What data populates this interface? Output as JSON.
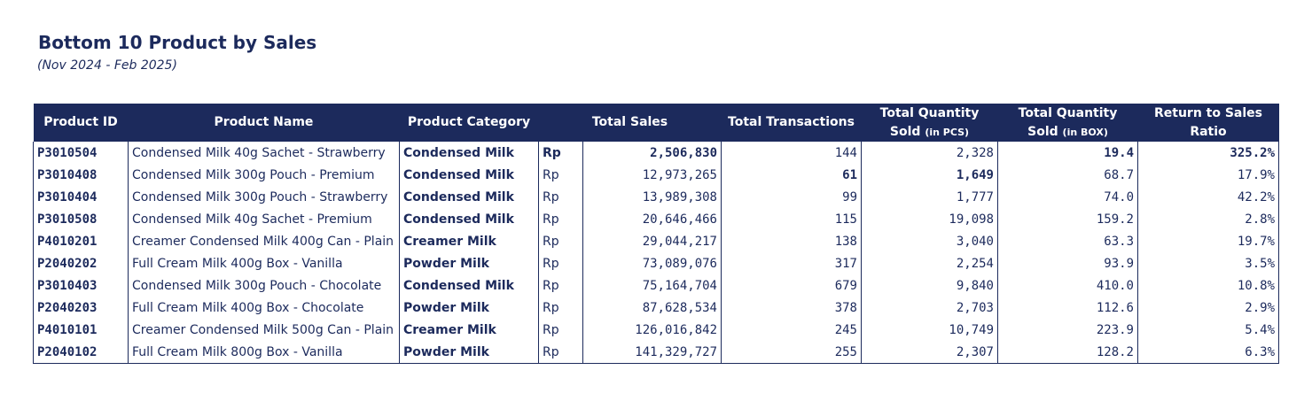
{
  "title": "Bottom 10 Product by Sales",
  "subtitle": "(Nov 2024 - Feb 2025)",
  "header": {
    "product_id": "Product ID",
    "product_name": "Product Name",
    "product_category": "Product Category",
    "total_sales": "Total Sales",
    "total_transactions": "Total Transactions",
    "qty_pcs_line1": "Total Quantity",
    "qty_pcs_line2": "Sold",
    "qty_pcs_unit": "(in PCS)",
    "qty_box_line1": "Total Quantity",
    "qty_box_line2": "Sold",
    "qty_box_unit": "(in BOX)",
    "ratio_line1": "Return to Sales",
    "ratio_line2": "Ratio"
  },
  "rows": [
    {
      "id": "P3010504",
      "name": "Condensed Milk 40g Sachet - Strawberry",
      "category": "Condensed Milk",
      "currency": "Rp",
      "sales": "2,506,830",
      "transactions": "144",
      "qty_pcs": "2,328",
      "qty_box": "19.4",
      "ratio": "325.2%"
    },
    {
      "id": "P3010408",
      "name": "Condensed Milk 300g Pouch - Premium",
      "category": "Condensed Milk",
      "currency": "Rp",
      "sales": "12,973,265",
      "transactions": "61",
      "qty_pcs": "1,649",
      "qty_box": "68.7",
      "ratio": "17.9%"
    },
    {
      "id": "P3010404",
      "name": "Condensed Milk 300g Pouch - Strawberry",
      "category": "Condensed Milk",
      "currency": "Rp",
      "sales": "13,989,308",
      "transactions": "99",
      "qty_pcs": "1,777",
      "qty_box": "74.0",
      "ratio": "42.2%"
    },
    {
      "id": "P3010508",
      "name": "Condensed Milk 40g Sachet - Premium",
      "category": "Condensed Milk",
      "currency": "Rp",
      "sales": "20,646,466",
      "transactions": "115",
      "qty_pcs": "19,098",
      "qty_box": "159.2",
      "ratio": "2.8%"
    },
    {
      "id": "P4010201",
      "name": "Creamer Condensed Milk 400g Can - Plain",
      "category": "Creamer Milk",
      "currency": "Rp",
      "sales": "29,044,217",
      "transactions": "138",
      "qty_pcs": "3,040",
      "qty_box": "63.3",
      "ratio": "19.7%"
    },
    {
      "id": "P2040202",
      "name": "Full Cream Milk 400g Box - Vanilla",
      "category": "Powder Milk",
      "currency": "Rp",
      "sales": "73,089,076",
      "transactions": "317",
      "qty_pcs": "2,254",
      "qty_box": "93.9",
      "ratio": "3.5%"
    },
    {
      "id": "P3010403",
      "name": "Condensed Milk 300g Pouch - Chocolate",
      "category": "Condensed Milk",
      "currency": "Rp",
      "sales": "75,164,704",
      "transactions": "679",
      "qty_pcs": "9,840",
      "qty_box": "410.0",
      "ratio": "10.8%"
    },
    {
      "id": "P2040203",
      "name": "Full Cream Milk 400g Box - Chocolate",
      "category": "Powder Milk",
      "currency": "Rp",
      "sales": "87,628,534",
      "transactions": "378",
      "qty_pcs": "2,703",
      "qty_box": "112.6",
      "ratio": "2.9%"
    },
    {
      "id": "P4010101",
      "name": "Creamer Condensed Milk 500g Can - Plain",
      "category": "Creamer Milk",
      "currency": "Rp",
      "sales": "126,016,842",
      "transactions": "245",
      "qty_pcs": "10,749",
      "qty_box": "223.9",
      "ratio": "5.4%"
    },
    {
      "id": "P2040102",
      "name": "Full Cream Milk 800g Box - Vanilla",
      "category": "Powder Milk",
      "currency": "Rp",
      "sales": "141,329,727",
      "transactions": "255",
      "qty_pcs": "2,307",
      "qty_box": "128.2",
      "ratio": "6.3%"
    }
  ],
  "highlight": {
    "brand": "#1c2a5c",
    "header_text": "#ffffff"
  }
}
